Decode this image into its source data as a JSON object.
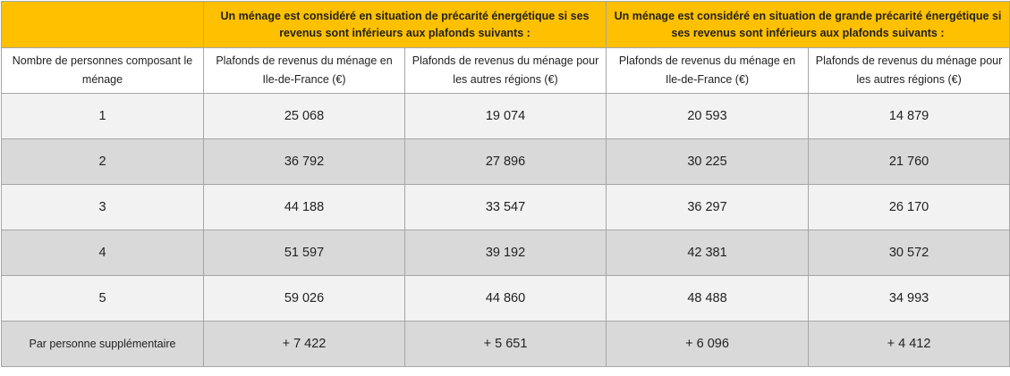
{
  "table": {
    "group_headers": {
      "corner": "",
      "group1": "Un ménage est considéré en situation de précarité énergétique si ses revenus sont inférieurs aux plafonds suivants :",
      "group2": "Un ménage est considéré en situation de grande précarité énergétique si ses revenus sont inférieurs aux plafonds suivants :"
    },
    "sub_headers": [
      "Nombre de personnes composant le ménage",
      "Plafonds de revenus du ménage en Ile-de-France (€)",
      "Plafonds de revenus du ménage pour les autres régions (€)",
      "Plafonds de revenus du ménage en Ile-de-France (€)",
      "Plafonds de revenus du ménage pour les autres régions (€)"
    ],
    "rows": [
      [
        "1",
        "25 068",
        "19 074",
        "20 593",
        "14 879"
      ],
      [
        "2",
        "36 792",
        "27 896",
        "30 225",
        "21 760"
      ],
      [
        "3",
        "44 188",
        "33 547",
        "36 297",
        "26 170"
      ],
      [
        "4",
        "51 597",
        "39 192",
        "42 381",
        "30 572"
      ],
      [
        "5",
        "59 026",
        "44 860",
        "48 488",
        "34 993"
      ],
      [
        "Par personne supplémentaire",
        "+ 7 422",
        "+ 5 651",
        "+ 6 096",
        "+ 4 412"
      ]
    ]
  },
  "colors": {
    "header_accent": "#ffc000",
    "row_light": "#f2f2f2",
    "row_dark": "#d9d9d9",
    "border": "#a6a6a6"
  }
}
